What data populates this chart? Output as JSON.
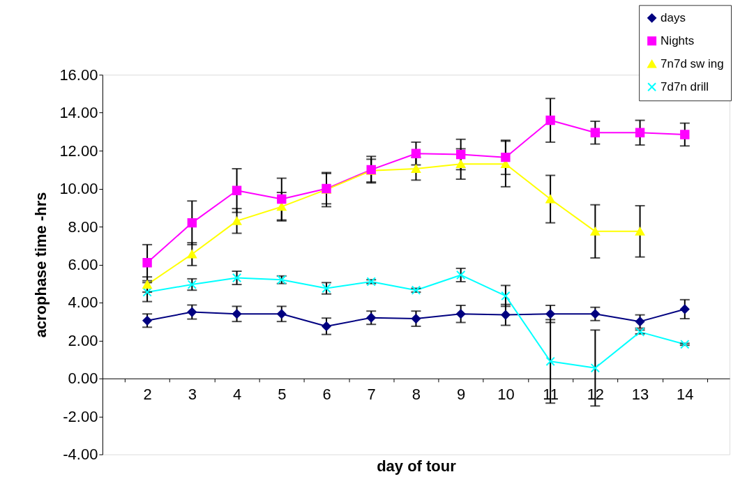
{
  "chart_data": {
    "type": "line",
    "xlabel": "day of tour",
    "ylabel": "acrophase time -hrs",
    "categories": [
      "2",
      "3",
      "4",
      "5",
      "6",
      "7",
      "8",
      "9",
      "10",
      "11",
      "12",
      "13",
      "14"
    ],
    "ylim": [
      -4,
      16
    ],
    "yticks": [
      {
        "value": -4,
        "label": "-4.00"
      },
      {
        "value": -2,
        "label": "-2.00"
      },
      {
        "value": 0,
        "label": "0.00"
      },
      {
        "value": 2,
        "label": "2.00"
      },
      {
        "value": 4,
        "label": "4.00"
      },
      {
        "value": 6,
        "label": "6.00"
      },
      {
        "value": 8,
        "label": "8.00"
      },
      {
        "value": 10,
        "label": "10.00"
      },
      {
        "value": 12,
        "label": "12.00"
      },
      {
        "value": 14,
        "label": "14.00"
      },
      {
        "value": 16,
        "label": "16.00"
      }
    ],
    "grid": false,
    "legend": "top right",
    "line_style": "solid",
    "series": [
      {
        "name": "days",
        "color": "#000080",
        "marker": "diamond",
        "values": [
          3.05,
          3.5,
          3.4,
          3.4,
          2.75,
          3.2,
          3.15,
          3.4,
          3.35,
          3.4,
          3.4,
          3.0,
          3.65
        ],
        "errors": [
          0.35,
          0.37,
          0.4,
          0.4,
          0.43,
          0.35,
          0.4,
          0.45,
          0.55,
          0.45,
          0.35,
          0.35,
          0.5
        ]
      },
      {
        "name": "Nights",
        "color": "#ff00ff",
        "marker": "square",
        "values": [
          6.1,
          8.2,
          9.9,
          9.45,
          10.0,
          11.0,
          11.85,
          11.8,
          11.65,
          13.6,
          12.95,
          12.95,
          12.85
        ],
        "errors": [
          0.95,
          1.15,
          1.15,
          1.1,
          0.8,
          0.7,
          0.6,
          0.8,
          0.9,
          1.15,
          0.6,
          0.65,
          0.6
        ]
      },
      {
        "name": "7n7d sw ing",
        "color": "#ffff00",
        "marker": "triangle",
        "values": [
          4.95,
          6.55,
          8.3,
          9.05,
          9.95,
          10.95,
          11.05,
          11.3,
          11.3,
          9.45,
          7.75,
          7.75,
          null
        ],
        "errors": [
          0.4,
          0.6,
          0.65,
          0.75,
          0.9,
          0.6,
          0.6,
          0.8,
          1.2,
          1.25,
          1.4,
          1.35,
          null
        ]
      },
      {
        "name": "7d7n drill",
        "color": "#00ffff",
        "marker": "cross",
        "values": [
          4.55,
          4.95,
          5.3,
          5.2,
          4.75,
          5.1,
          4.65,
          5.45,
          4.35,
          0.9,
          0.55,
          2.45,
          1.8
        ],
        "errors": [
          0.5,
          0.3,
          0.35,
          0.2,
          0.3,
          0.1,
          0.1,
          0.35,
          0.55,
          2.2,
          2.0,
          0.1,
          0.05
        ]
      }
    ]
  }
}
